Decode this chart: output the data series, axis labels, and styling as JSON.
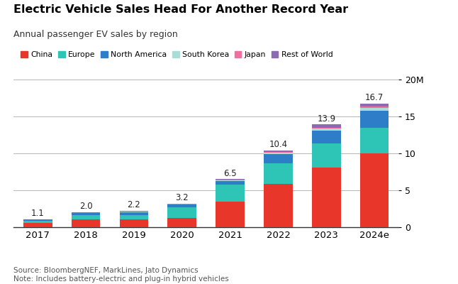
{
  "title": "Electric Vehicle Sales Head For Another Record Year",
  "subtitle": "Annual passenger EV sales by region",
  "years": [
    "2017",
    "2018",
    "2019",
    "2020",
    "2021",
    "2022",
    "2023",
    "2024e"
  ],
  "totals": [
    1.1,
    2.0,
    2.2,
    3.2,
    6.5,
    10.4,
    13.9,
    16.7
  ],
  "regions": [
    "China",
    "Europe",
    "North America",
    "South Korea",
    "Japan",
    "Rest of World"
  ],
  "colors": [
    "#e8362a",
    "#2ec4b6",
    "#2e7dc8",
    "#a8ddd8",
    "#f06fa0",
    "#8b6bb1"
  ],
  "data": {
    "China": [
      0.56,
      1.06,
      1.06,
      1.25,
      3.5,
      5.9,
      8.1,
      10.0
    ],
    "Europe": [
      0.31,
      0.56,
      0.62,
      1.4,
      2.25,
      2.75,
      3.2,
      3.5
    ],
    "North America": [
      0.15,
      0.26,
      0.32,
      0.38,
      0.54,
      1.3,
      1.8,
      2.3
    ],
    "South Korea": [
      0.03,
      0.05,
      0.07,
      0.08,
      0.1,
      0.18,
      0.25,
      0.35
    ],
    "Japan": [
      0.03,
      0.04,
      0.05,
      0.05,
      0.06,
      0.09,
      0.12,
      0.15
    ],
    "Rest of World": [
      0.02,
      0.03,
      0.08,
      0.04,
      0.05,
      0.18,
      0.43,
      0.4
    ]
  },
  "ylabel_ticks": [
    0,
    5,
    10,
    15,
    20
  ],
  "ylabel_labels": [
    "0",
    "5",
    "10",
    "15",
    "20M"
  ],
  "source_text": "Source: BloombergNEF, MarkLines, Jato Dynamics\nNote: Includes battery-electric and plug-in hybrid vehicles",
  "background_color": "#ffffff"
}
